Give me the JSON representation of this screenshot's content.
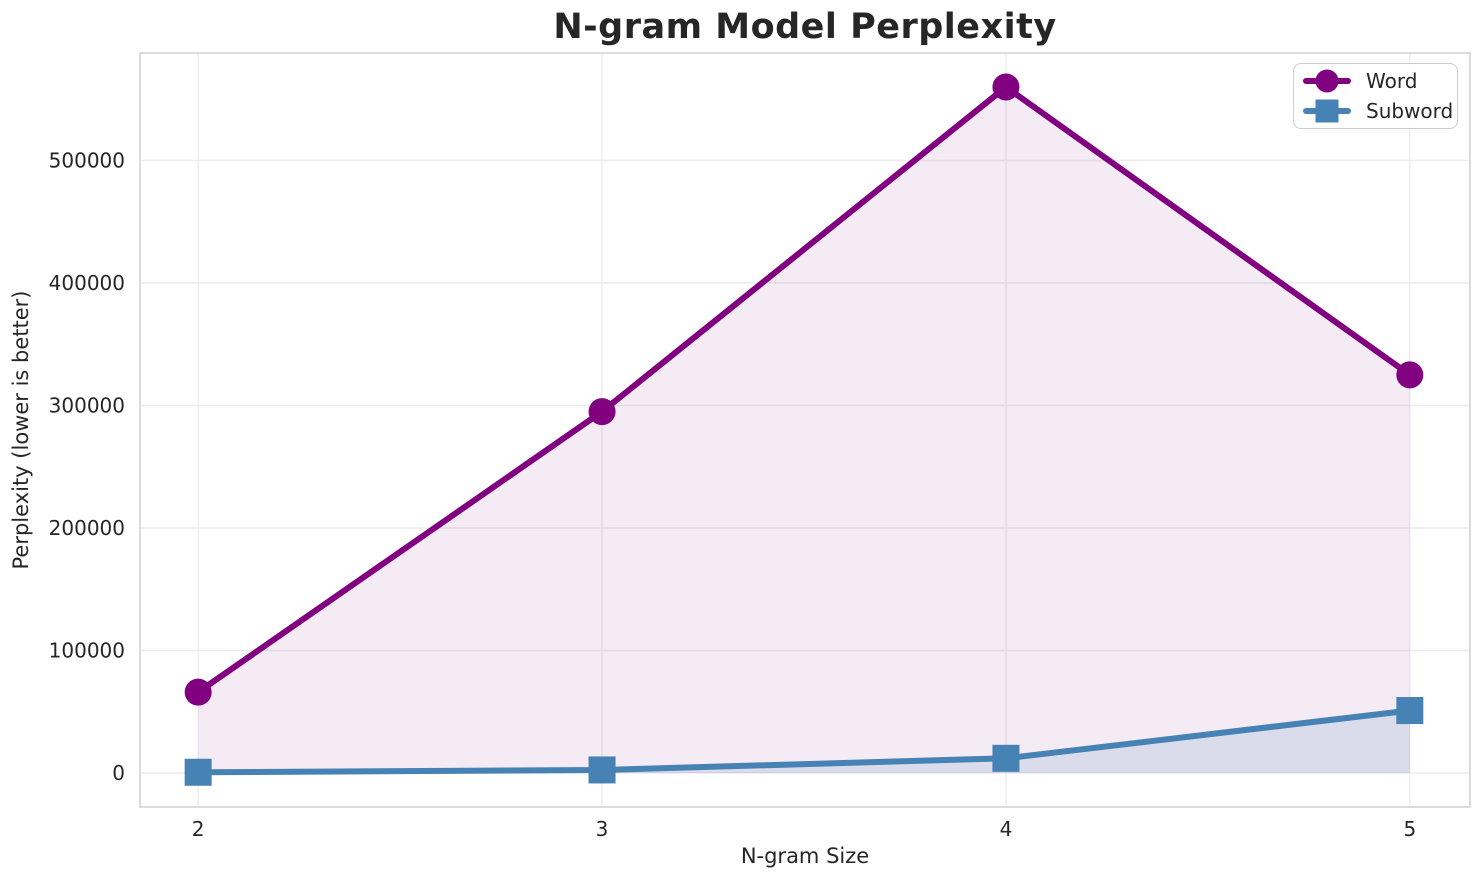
{
  "figure": {
    "background": "#ffffff"
  },
  "chart_data": {
    "type": "line",
    "title": "N-gram Model Perplexity",
    "xlabel": "N-gram Size",
    "ylabel": "Perplexity (lower is better)",
    "x": [
      2,
      3,
      4,
      5
    ],
    "x_tick_labels": [
      "2",
      "3",
      "4",
      "5"
    ],
    "y_ticks": [
      0,
      100000,
      200000,
      300000,
      400000,
      500000
    ],
    "y_tick_labels": [
      "0",
      "100000",
      "200000",
      "300000",
      "400000",
      "500000"
    ],
    "xlim": [
      1.856,
      5.149
    ],
    "ylim": [
      -27755,
      587755
    ],
    "grid": true,
    "legend_position": "upper right",
    "series": [
      {
        "name": "Word",
        "color": "#800080",
        "marker": "circle",
        "line_width": 6,
        "marker_size": 27,
        "fill_to_zero": true,
        "fill_opacity": 0.08,
        "values": [
          66000,
          295000,
          560000,
          325000
        ]
      },
      {
        "name": "Subword",
        "color": "#4682b4",
        "marker": "square",
        "line_width": 6,
        "marker_size": 27,
        "fill_to_zero": true,
        "fill_opacity": 0.15,
        "values": [
          600,
          2500,
          12000,
          51000
        ]
      }
    ],
    "axes": {
      "spine_color": "#d4d4d4",
      "grid_color": "#ececec",
      "text_color": "#262626",
      "tick_font_size": 20
    }
  }
}
